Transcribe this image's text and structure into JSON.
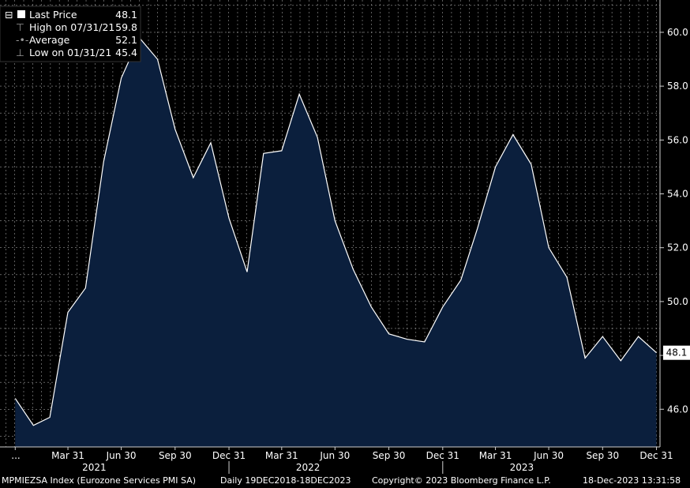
{
  "legend": {
    "last_price_label": "Last Price",
    "last_price_value": "48.1",
    "high_label": "High on 07/31/21",
    "high_value": "59.8",
    "average_label": "Average",
    "average_value": "52.1",
    "low_label": "Low on 01/31/21",
    "low_value": "45.4"
  },
  "last_value_tag": "48.1",
  "footer": {
    "ticker": "MPMIEZSA Index (Eurozone Services PMI SA)",
    "range": "Daily 19DEC2018-18DEC2023",
    "copyright": "Copyright© 2023 Bloomberg Finance L.P.",
    "timestamp": "18-Dec-2023 13:31:58"
  },
  "colors": {
    "background": "#000000",
    "area_fill": "#0b1f3d",
    "line": "#ffffff",
    "grid": "#9a9a9a"
  },
  "chart_data": {
    "type": "area",
    "series": [
      {
        "name": "Last Price",
        "x": [
          "2020-12-31",
          "2021-01-31",
          "2021-02-28",
          "2021-03-31",
          "2021-04-30",
          "2021-05-31",
          "2021-06-30",
          "2021-07-31",
          "2021-08-31",
          "2021-09-30",
          "2021-10-31",
          "2021-11-30",
          "2021-12-31",
          "2022-01-31",
          "2022-02-28",
          "2022-03-31",
          "2022-04-30",
          "2022-05-31",
          "2022-06-30",
          "2022-07-31",
          "2022-08-31",
          "2022-09-30",
          "2022-10-31",
          "2022-11-30",
          "2022-12-31",
          "2023-01-31",
          "2023-02-28",
          "2023-03-31",
          "2023-04-30",
          "2023-05-31",
          "2023-06-30",
          "2023-07-31",
          "2023-08-31",
          "2023-09-30",
          "2023-10-31",
          "2023-11-30",
          "2023-12-31"
        ],
        "values": [
          46.4,
          45.4,
          45.7,
          49.6,
          50.5,
          55.2,
          58.3,
          59.8,
          59.0,
          56.4,
          54.6,
          55.9,
          53.1,
          51.1,
          55.5,
          55.6,
          57.7,
          56.1,
          53.0,
          51.2,
          49.8,
          48.8,
          48.6,
          48.5,
          49.8,
          50.8,
          52.7,
          55.0,
          56.2,
          55.1,
          52.0,
          50.9,
          47.9,
          48.7,
          47.8,
          48.7,
          48.1
        ]
      }
    ],
    "y_ticks": [
      "46.0",
      "48.0",
      "50.0",
      "52.0",
      "54.0",
      "56.0",
      "58.0",
      "60.0"
    ],
    "ylim": [
      44.6,
      61.2
    ],
    "x_ticks": [
      "...",
      "Mar 31",
      "Jun 30",
      "Sep 30",
      "Dec 31",
      "Mar 31",
      "Jun 30",
      "Sep 30",
      "Dec 31",
      "Mar 31",
      "Jun 30",
      "Sep 30",
      "Dec 31"
    ],
    "x_tick_dates": [
      "2020-12-31",
      "2021-03-31",
      "2021-06-30",
      "2021-09-30",
      "2021-12-31",
      "2022-03-31",
      "2022-06-30",
      "2022-09-30",
      "2022-12-31",
      "2023-03-31",
      "2023-06-30",
      "2023-09-30",
      "2023-12-31"
    ],
    "year_labels": [
      "2021",
      "2022",
      "2023"
    ],
    "year_label_dates": [
      "2021-05-15",
      "2022-05-15",
      "2023-05-15"
    ],
    "grid": true,
    "legend_position": "top-left"
  }
}
